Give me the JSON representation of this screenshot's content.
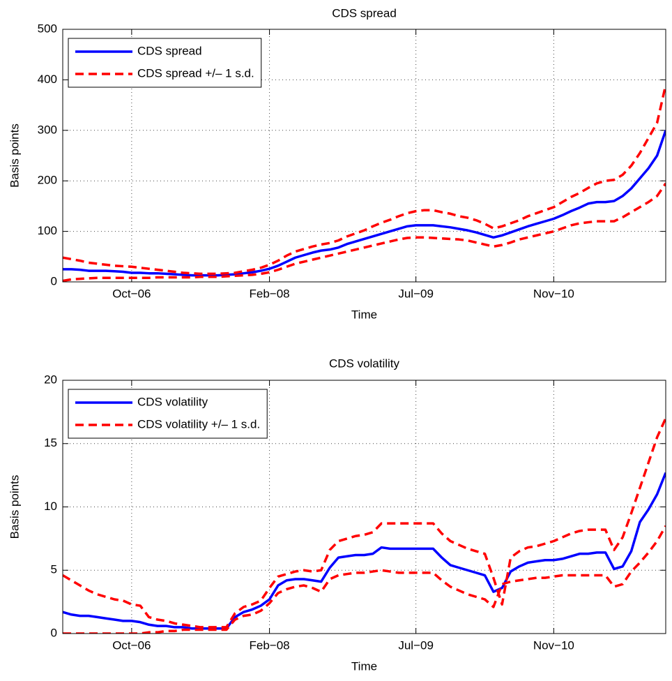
{
  "chart_data": [
    {
      "type": "line",
      "title": "CDS spread",
      "x_label": "Time",
      "y_label": "Basis points",
      "categories": [
        null,
        null,
        null,
        null,
        null,
        null,
        null,
        null,
        "Oct−06",
        null,
        null,
        null,
        null,
        null,
        null,
        null,
        null,
        null,
        null,
        null,
        null,
        null,
        null,
        null,
        "Feb−08",
        null,
        null,
        null,
        null,
        null,
        null,
        null,
        null,
        null,
        null,
        null,
        null,
        null,
        null,
        null,
        null,
        "Jul−09",
        null,
        null,
        null,
        null,
        null,
        null,
        null,
        null,
        null,
        null,
        null,
        null,
        null,
        null,
        null,
        "Nov−10",
        null,
        null,
        null,
        null,
        null,
        null,
        null,
        null,
        null,
        null,
        null,
        null,
        null
      ],
      "ylim": [
        0,
        500
      ],
      "yticks": [
        0,
        100,
        200,
        300,
        400,
        500
      ],
      "grid": true,
      "legend": "upper left",
      "series": [
        {
          "name": "CDS spread",
          "color": "#0000ff",
          "style": "solid",
          "values": [
            25,
            25,
            24,
            22,
            22,
            22,
            21,
            20,
            18,
            18,
            17,
            17,
            16,
            15,
            14,
            13,
            13,
            13,
            13,
            14,
            15,
            17,
            19,
            22,
            26,
            32,
            40,
            48,
            53,
            58,
            62,
            64,
            68,
            75,
            80,
            85,
            90,
            95,
            100,
            105,
            110,
            112,
            112,
            112,
            110,
            108,
            105,
            102,
            98,
            93,
            88,
            92,
            98,
            104,
            110,
            115,
            120,
            125,
            132,
            140,
            147,
            155,
            158,
            158,
            160,
            170,
            185,
            205,
            225,
            250,
            300
          ]
        },
        {
          "name": "CDS spread +/– 1 s.d.",
          "color": "#ff0000",
          "style": "dashed",
          "values": [
            48,
            45,
            42,
            38,
            36,
            34,
            32,
            31,
            30,
            28,
            26,
            24,
            22,
            20,
            18,
            17,
            16,
            16,
            16,
            17,
            18,
            21,
            24,
            28,
            34,
            42,
            52,
            60,
            65,
            70,
            74,
            77,
            82,
            90,
            96,
            102,
            110,
            117,
            123,
            130,
            136,
            140,
            142,
            142,
            138,
            135,
            130,
            127,
            122,
            115,
            106,
            110,
            116,
            122,
            130,
            136,
            142,
            148,
            158,
            168,
            176,
            186,
            195,
            200,
            202,
            212,
            230,
            255,
            285,
            315,
            390
          ]
        },
        {
          "color": "#ff0000",
          "style": "dashed",
          "values": [
            2,
            5,
            6,
            7,
            8,
            8,
            8,
            8,
            8,
            8,
            8,
            9,
            9,
            9,
            9,
            9,
            10,
            10,
            10,
            11,
            12,
            13,
            14,
            16,
            19,
            24,
            30,
            36,
            40,
            44,
            48,
            52,
            56,
            60,
            64,
            68,
            72,
            76,
            80,
            84,
            87,
            88,
            88,
            87,
            86,
            85,
            84,
            82,
            78,
            74,
            70,
            73,
            78,
            84,
            88,
            92,
            96,
            100,
            106,
            112,
            116,
            118,
            120,
            120,
            120,
            128,
            138,
            148,
            158,
            170,
            195
          ]
        }
      ]
    },
    {
      "type": "line",
      "title": "CDS volatility",
      "x_label": "Time",
      "y_label": "Basis points",
      "categories": [
        null,
        null,
        null,
        null,
        null,
        null,
        null,
        null,
        "Oct−06",
        null,
        null,
        null,
        null,
        null,
        null,
        null,
        null,
        null,
        null,
        null,
        null,
        null,
        null,
        null,
        "Feb−08",
        null,
        null,
        null,
        null,
        null,
        null,
        null,
        null,
        null,
        null,
        null,
        null,
        null,
        null,
        null,
        null,
        "Jul−09",
        null,
        null,
        null,
        null,
        null,
        null,
        null,
        null,
        null,
        null,
        null,
        null,
        null,
        null,
        null,
        "Nov−10",
        null,
        null,
        null,
        null,
        null,
        null,
        null,
        null,
        null,
        null,
        null,
        null,
        null
      ],
      "ylim": [
        0,
        20
      ],
      "yticks": [
        0,
        5,
        10,
        15,
        20
      ],
      "grid": true,
      "legend": "upper left",
      "series": [
        {
          "name": "CDS volatility",
          "color": "#0000ff",
          "style": "solid",
          "values": [
            1.7,
            1.5,
            1.4,
            1.4,
            1.3,
            1.2,
            1.1,
            1.0,
            1.0,
            0.9,
            0.7,
            0.6,
            0.6,
            0.5,
            0.5,
            0.4,
            0.4,
            0.4,
            0.4,
            0.4,
            1.3,
            1.7,
            1.9,
            2.2,
            2.7,
            3.8,
            4.2,
            4.3,
            4.3,
            4.2,
            4.1,
            5.2,
            6.0,
            6.1,
            6.2,
            6.2,
            6.3,
            6.8,
            6.7,
            6.7,
            6.7,
            6.7,
            6.7,
            6.7,
            6.0,
            5.4,
            5.2,
            5.0,
            4.8,
            4.6,
            3.3,
            3.6,
            4.9,
            5.3,
            5.6,
            5.7,
            5.8,
            5.8,
            5.9,
            6.1,
            6.3,
            6.3,
            6.4,
            6.4,
            5.1,
            5.3,
            6.5,
            8.8,
            9.8,
            11.0,
            12.7
          ]
        },
        {
          "name": "CDS volatility +/– 1 s.d.",
          "color": "#ff0000",
          "style": "dashed",
          "values": [
            4.6,
            4.2,
            3.8,
            3.4,
            3.1,
            2.9,
            2.7,
            2.6,
            2.3,
            2.2,
            1.3,
            1.1,
            1.0,
            0.8,
            0.7,
            0.6,
            0.5,
            0.5,
            0.5,
            0.5,
            1.6,
            2.1,
            2.3,
            2.6,
            3.6,
            4.5,
            4.7,
            4.9,
            5.0,
            4.9,
            5.0,
            6.6,
            7.3,
            7.5,
            7.7,
            7.8,
            8.0,
            8.7,
            8.7,
            8.7,
            8.7,
            8.7,
            8.7,
            8.7,
            7.9,
            7.3,
            7.0,
            6.7,
            6.5,
            6.3,
            4.4,
            2.3,
            6.0,
            6.5,
            6.8,
            6.9,
            7.1,
            7.3,
            7.6,
            7.9,
            8.1,
            8.2,
            8.2,
            8.2,
            6.6,
            7.6,
            9.5,
            11.5,
            13.5,
            15.5,
            17.0
          ]
        },
        {
          "color": "#ff0000",
          "style": "dashed",
          "values": [
            0,
            0,
            0,
            0,
            0,
            0,
            0,
            0,
            0,
            0,
            0.1,
            0.1,
            0.2,
            0.2,
            0.3,
            0.3,
            0.3,
            0.3,
            0.3,
            0.3,
            1.1,
            1.4,
            1.5,
            1.8,
            2.4,
            3.2,
            3.5,
            3.7,
            3.8,
            3.6,
            3.3,
            4.3,
            4.6,
            4.7,
            4.8,
            4.8,
            4.9,
            5.0,
            4.9,
            4.8,
            4.8,
            4.8,
            4.8,
            4.8,
            4.2,
            3.7,
            3.4,
            3.1,
            2.9,
            2.7,
            2.1,
            3.9,
            4.1,
            4.2,
            4.3,
            4.4,
            4.4,
            4.5,
            4.6,
            4.6,
            4.6,
            4.6,
            4.6,
            4.6,
            3.7,
            3.9,
            4.9,
            5.6,
            6.4,
            7.3,
            8.5
          ]
        }
      ]
    }
  ]
}
